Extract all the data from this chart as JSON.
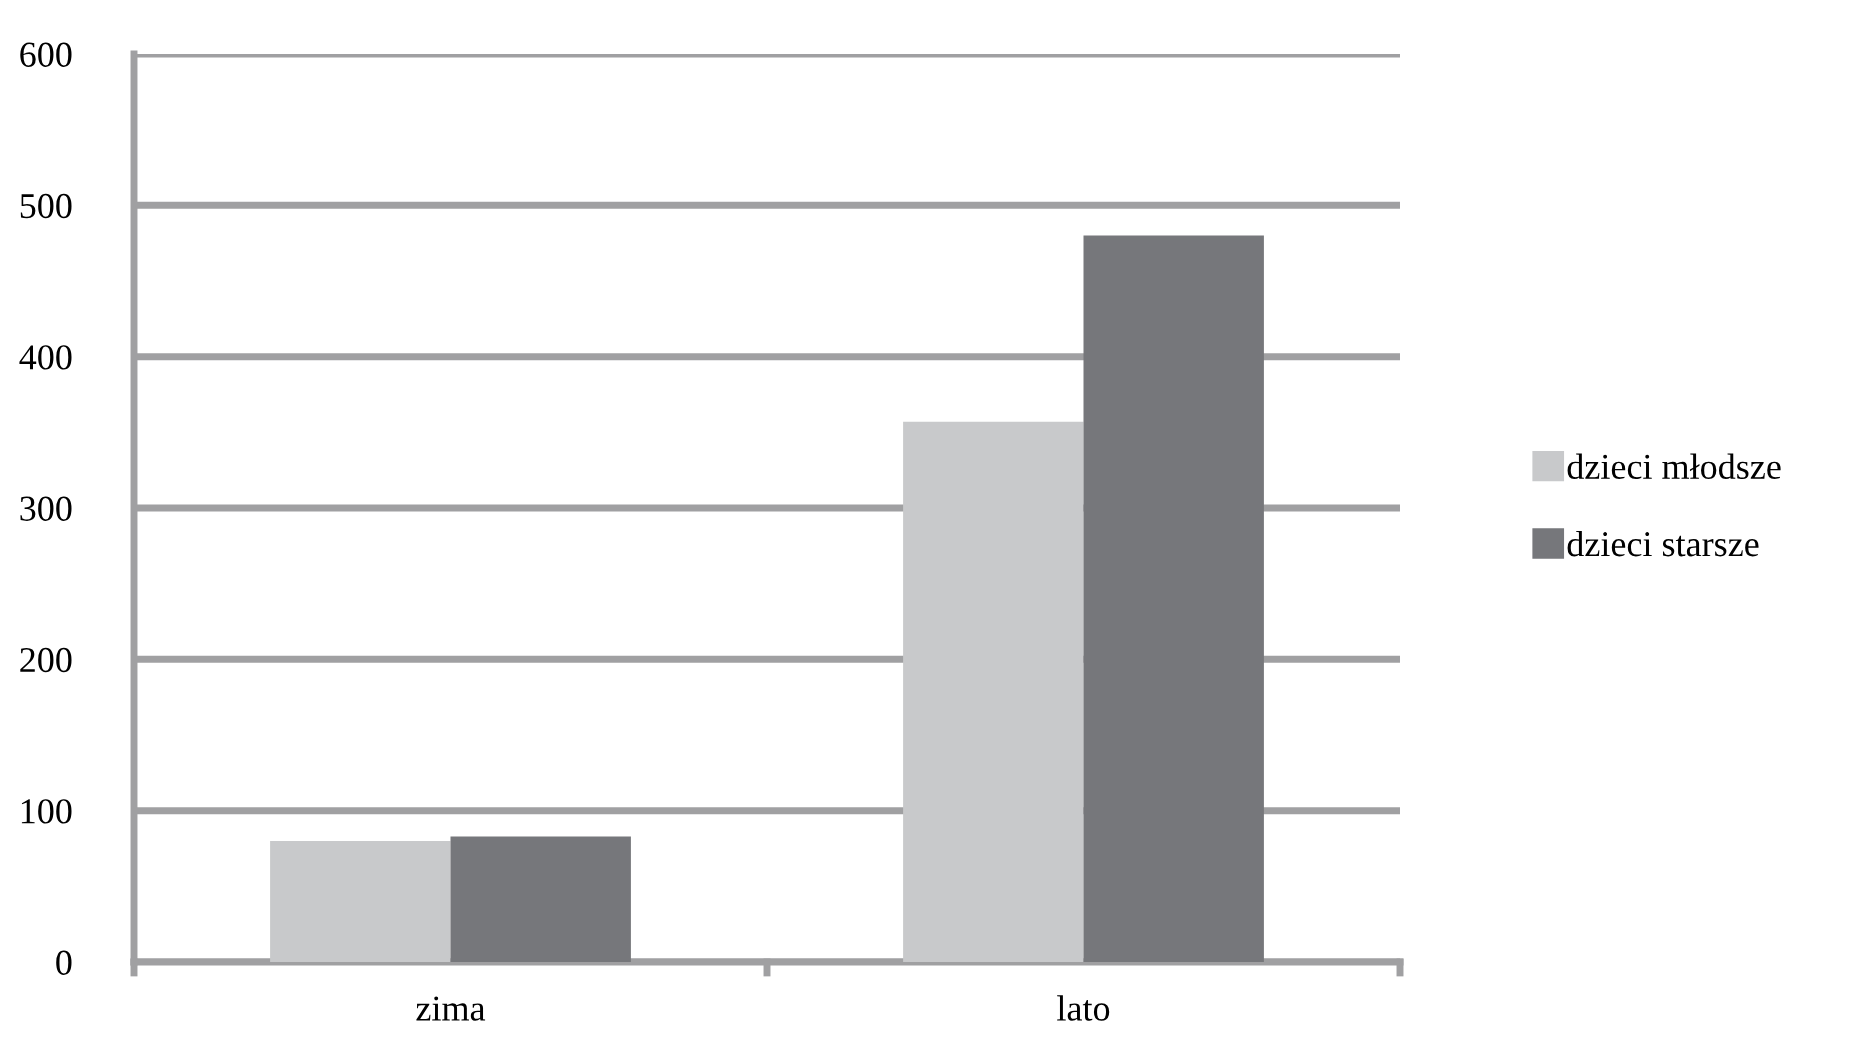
{
  "chart_data": {
    "type": "bar",
    "categories": [
      "zima",
      "lato"
    ],
    "series": [
      {
        "name": "dzieci młodsze",
        "color": "#c8c9cb",
        "values": [
          80,
          357
        ]
      },
      {
        "name": "dzieci starsze",
        "color": "#76777b",
        "values": [
          83,
          480
        ]
      }
    ],
    "ylim": [
      0,
      600
    ],
    "yticks": [
      0,
      100,
      200,
      300,
      400,
      500,
      600
    ],
    "grid": "y",
    "legend": "right"
  }
}
